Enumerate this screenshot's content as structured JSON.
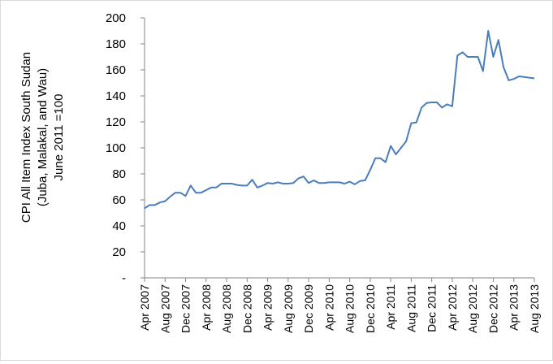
{
  "chart_data": {
    "type": "line",
    "title": "",
    "ylabel_lines": [
      "CPI All Item Index South Sudan",
      "(Juba, Malakal, and Wau)",
      "June 2011 =100"
    ],
    "xlabel": "",
    "ylim": [
      0,
      200
    ],
    "y_ticks": [
      "-",
      "20",
      "40",
      "60",
      "80",
      "100",
      "120",
      "140",
      "160",
      "180",
      "200"
    ],
    "x_tick_labels": [
      "Apr 2007",
      "Aug 2007",
      "Dec 2007",
      "Apr 2008",
      "Aug 2008",
      "Dec 2008",
      "Apr 2009",
      "Aug 2009",
      "Dec 2009",
      "Apr 2010",
      "Aug 2010",
      "Dec 2010",
      "Apr 2011",
      "Aug 2011",
      "Dec 2011",
      "Apr 2012",
      "Aug 2012",
      "Dec 2012",
      "Apr 2013",
      "Aug 2013"
    ],
    "grid": false,
    "legend": "none",
    "line_color": "#4a7ebb",
    "series": [
      {
        "x": [
          "Apr 2007",
          "May 2007",
          "Jun 2007",
          "Jul 2007",
          "Aug 2007",
          "Sep 2007",
          "Oct 2007",
          "Nov 2007",
          "Dec 2007",
          "Jan 2008",
          "Feb 2008",
          "Mar 2008",
          "Apr 2008",
          "May 2008",
          "Jun 2008",
          "Jul 2008",
          "Aug 2008",
          "Sep 2008",
          "Oct 2008",
          "Nov 2008",
          "Dec 2008",
          "Jan 2009",
          "Feb 2009",
          "Mar 2009",
          "Apr 2009",
          "May 2009",
          "Jun 2009",
          "Jul 2009",
          "Aug 2009",
          "Sep 2009",
          "Oct 2009",
          "Nov 2009",
          "Dec 2009",
          "Jan 2010",
          "Feb 2010",
          "Mar 2010",
          "Apr 2010",
          "May 2010",
          "Jun 2010",
          "Jul 2010",
          "Aug 2010",
          "Sep 2010",
          "Oct 2010",
          "Nov 2010",
          "Dec 2010",
          "Jan 2011",
          "Feb 2011",
          "Mar 2011",
          "Apr 2011",
          "May 2011",
          "Jun 2011",
          "Jul 2011",
          "Aug 2011",
          "Sep 2011",
          "Oct 2011",
          "Nov 2011",
          "Dec 2011",
          "Jan 2012",
          "Feb 2012",
          "Mar 2012",
          "Apr 2012",
          "May 2012",
          "Jun 2012",
          "Jul 2012",
          "Aug 2012",
          "Sep 2012",
          "Oct 2012",
          "Nov 2012",
          "Dec 2012",
          "Jan 2013",
          "Feb 2013",
          "Mar 2013",
          "Apr 2013",
          "May 2013",
          "Jun 2013",
          "Jul 2013",
          "Aug 2013"
        ],
        "values": [
          53.5,
          56,
          56,
          58,
          59,
          62.5,
          65.5,
          65.5,
          63,
          71,
          65.5,
          65.5,
          67.5,
          69.5,
          69.5,
          72.5,
          72.5,
          72.5,
          71.5,
          71,
          71,
          75.5,
          69.5,
          71,
          73,
          72.5,
          73.5,
          72.5,
          72.5,
          73,
          76.5,
          78,
          73,
          75,
          73,
          73,
          73.5,
          73.5,
          73.5,
          72.5,
          74,
          72,
          74.5,
          75,
          83,
          92,
          92,
          89,
          101.5,
          95,
          100,
          105,
          119,
          119.5,
          131,
          134.5,
          135,
          135,
          131,
          133.5,
          132,
          171,
          173.5,
          170,
          170,
          170,
          159,
          190,
          170,
          183,
          162,
          152,
          153,
          155,
          154.5,
          154,
          153.5
        ]
      }
    ]
  }
}
